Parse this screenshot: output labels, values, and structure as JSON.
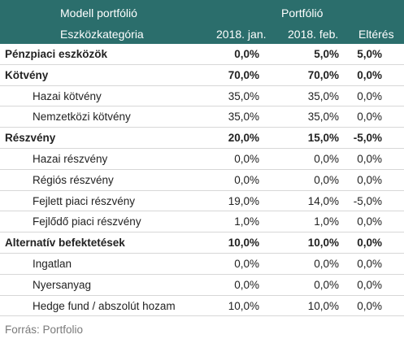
{
  "header": {
    "title": "Modell portfólió",
    "category": "Eszközkategória",
    "portfolio": "Portfólió",
    "col1": "2018. jan.",
    "col2": "2018. feb.",
    "col3": "Eltérés"
  },
  "rows": [
    {
      "label": "Pénzpiaci eszközök",
      "jan": "0,0%",
      "feb": "5,0%",
      "diff": "5,0%",
      "type": "group"
    },
    {
      "label": "Kötvény",
      "jan": "70,0%",
      "feb": "70,0%",
      "diff": "0,0%",
      "type": "group"
    },
    {
      "label": "Hazai kötvény",
      "jan": "35,0%",
      "feb": "35,0%",
      "diff": "0,0%",
      "type": "sub"
    },
    {
      "label": "Nemzetközi kötvény",
      "jan": "35,0%",
      "feb": "35,0%",
      "diff": "0,0%",
      "type": "sub"
    },
    {
      "label": "Részvény",
      "jan": "20,0%",
      "feb": "15,0%",
      "diff": "-5,0%",
      "type": "group"
    },
    {
      "label": "Hazai részvény",
      "jan": "0,0%",
      "feb": "0,0%",
      "diff": "0,0%",
      "type": "sub"
    },
    {
      "label": "Régiós részvény",
      "jan": "0,0%",
      "feb": "0,0%",
      "diff": "0,0%",
      "type": "sub"
    },
    {
      "label": "Fejlett piaci részvény",
      "jan": "19,0%",
      "feb": "14,0%",
      "diff": "-5,0%",
      "type": "sub"
    },
    {
      "label": "Fejlődő piaci részvény",
      "jan": "1,0%",
      "feb": "1,0%",
      "diff": "0,0%",
      "type": "sub"
    },
    {
      "label": "Alternatív befektetések",
      "jan": "10,0%",
      "feb": "10,0%",
      "diff": "0,0%",
      "type": "group"
    },
    {
      "label": "Ingatlan",
      "jan": "0,0%",
      "feb": "0,0%",
      "diff": "0,0%",
      "type": "sub"
    },
    {
      "label": "Nyersanyag",
      "jan": "0,0%",
      "feb": "0,0%",
      "diff": "0,0%",
      "type": "sub"
    },
    {
      "label": "Hedge fund / abszolút hozam",
      "jan": "10,0%",
      "feb": "10,0%",
      "diff": "0,0%",
      "type": "sub"
    }
  ],
  "source": "Forrás: Portfolio",
  "colors": {
    "header_bg": "#2b6e6c",
    "header_text": "#ffffff",
    "source_text": "#7a7a7a"
  }
}
